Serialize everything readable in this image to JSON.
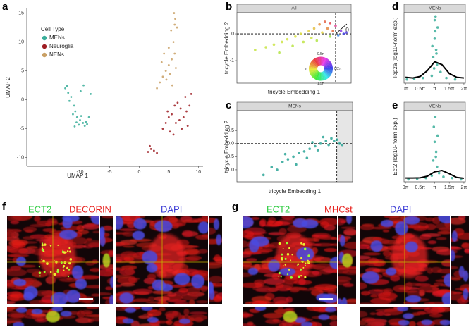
{
  "chart_data": [
    {
      "type": "scatter",
      "panel": "a",
      "xlabel": "UMAP 1",
      "ylabel": "UMAP 2",
      "xlim": [
        -19,
        10.8
      ],
      "ylim": [
        -11.5,
        15.8
      ],
      "xticks": [
        -10,
        -5,
        0,
        5,
        10
      ],
      "yticks": [
        -10,
        -5,
        0,
        5,
        10,
        15
      ],
      "legend_title": "Cell Type",
      "legend": "top-left",
      "series": [
        {
          "name": "MENs",
          "color": "#3aae9a",
          "x": [
            -12.5,
            -12,
            -11.5,
            -11,
            -10.8,
            -10.5,
            -10,
            -9.5,
            -9,
            -8.5,
            -11.8,
            -11.2,
            -10.2,
            -9.8,
            -9.2,
            -8.8,
            -8.2,
            -12.2,
            -10.6,
            -9.4,
            -10.9,
            -9.9
          ],
          "values": [
            2,
            1.2,
            0.5,
            -1,
            -2,
            -3,
            -3.5,
            -4,
            -3.8,
            -3,
            -0.2,
            -2.5,
            -4.3,
            -2.8,
            -4.5,
            -4.2,
            1,
            2.4,
            -3.9,
            2.5,
            -4.6,
            1.5
          ]
        },
        {
          "name": "Neuroglia",
          "color": "#9e1c22",
          "x": [
            4,
            4.5,
            5,
            5.5,
            6,
            6.5,
            7,
            7.5,
            8,
            8.5,
            5.2,
            6.2,
            7.2,
            4.8,
            6.8,
            8.2,
            1.5,
            2,
            2.5,
            1.8,
            3,
            7.8,
            8.8,
            5.8
          ],
          "values": [
            -5,
            -4,
            -3,
            -2.5,
            -1,
            -0.5,
            -1.5,
            -3,
            -2,
            -1,
            -5.5,
            -4,
            -5,
            -2,
            -3.5,
            -4.5,
            -9,
            -8.5,
            -8.8,
            -8,
            -9.2,
            0.5,
            1,
            -6
          ]
        },
        {
          "name": "NENs",
          "color": "#c9a065",
          "x": [
            3,
            3.5,
            4,
            4.5,
            5,
            5.5,
            6,
            5,
            5.8,
            4.6,
            5.2,
            6.2,
            5.6,
            5.4,
            6,
            6.1,
            5.9,
            3.8,
            4.2,
            6.4
          ],
          "values": [
            2,
            3,
            4,
            5,
            6,
            7,
            8,
            9,
            10,
            3.5,
            4.5,
            5.5,
            2.5,
            12,
            13,
            14,
            15,
            6.5,
            8,
            12.5
          ]
        }
      ]
    },
    {
      "type": "scatter",
      "panel": "b",
      "strip": "All",
      "xlabel": "tricycle Embedding 1",
      "ylabel": "tricycle Embedding 2",
      "xlim": [
        -3.68,
        0.58
      ],
      "ylim": [
        -1.84,
        0.79
      ],
      "yticks": [
        -1,
        0
      ],
      "vline": 0,
      "hline": 0,
      "color_by": "angle",
      "annotation": "θ",
      "wheel_labels": [
        "0.5π",
        "π",
        "1.5π",
        "0/2π"
      ],
      "series": [
        {
          "x": [
            -3,
            -2.6,
            -2.3,
            -2,
            -1.8,
            -1.5,
            -1.3,
            -1,
            -0.8,
            -0.6,
            -0.4,
            -0.2,
            0,
            0.2,
            0.3,
            -1.2,
            -0.9,
            -0.5,
            -0.3,
            -0.1,
            0.1,
            -1.6,
            -2.1,
            -0.7,
            -0.2,
            0.4
          ],
          "values": [
            -0.6,
            -0.5,
            -0.4,
            -0.3,
            -0.2,
            -0.1,
            0,
            0.1,
            0.2,
            0.35,
            0.45,
            0.4,
            0.3,
            0.1,
            0,
            -0.3,
            -0.15,
            0.05,
            0.2,
            0.1,
            -0.05,
            -0.45,
            -0.7,
            -0.25,
            -0.1,
            0.05
          ]
        }
      ]
    },
    {
      "type": "scatter",
      "panel": "c",
      "strip": "MENs",
      "xlabel": "tricycle Embedding 1",
      "ylabel": "tricycle Embedding 2",
      "xlim": [
        -3.68,
        0.58
      ],
      "ylim": [
        -1.46,
        1.26
      ],
      "yticks": [
        {
          "value": -1,
          "label": "-1.0"
        },
        -0.5,
        {
          "value": 0,
          "label": "0.0"
        },
        0.5
      ],
      "vline": 0,
      "hline": 0,
      "shade": "right",
      "series": [
        {
          "color": "#2aa596",
          "x": [
            -2.7,
            -2.4,
            -2.2,
            -2,
            -1.8,
            -1.6,
            -1.4,
            -1.2,
            -1,
            -0.8,
            -0.6,
            -0.4,
            -0.2,
            0,
            0.1,
            -1.5,
            -1.1,
            -0.7,
            -0.3,
            -0.5,
            -0.9,
            -1.9,
            -0.1,
            0.2
          ],
          "values": [
            -1.2,
            -0.9,
            -1,
            -0.7,
            -0.6,
            -0.5,
            -0.35,
            -0.3,
            -0.2,
            -0.1,
            0,
            0.1,
            0.2,
            0.15,
            0,
            -0.8,
            -0.55,
            -0.25,
            -0.05,
            0.25,
            0.05,
            -0.4,
            0.1,
            -0.05
          ]
        }
      ]
    },
    {
      "type": "line",
      "panel": "d",
      "strip": "MENs",
      "ylabel": "Top2a (log10-norm exp.)",
      "xlim": [
        -0.05,
        2.05
      ],
      "ylim": [
        -0.05,
        0.9
      ],
      "xticks": [
        {
          "value": 0,
          "label": "0π"
        },
        {
          "value": 0.5,
          "label": "0.5π"
        },
        {
          "value": 1,
          "label": "π"
        },
        {
          "value": 1.5,
          "label": "1.5π"
        },
        {
          "value": 2,
          "label": "2π"
        }
      ],
      "series": [
        {
          "mode": "points",
          "color": "#3aae9a",
          "x": [
            0.05,
            0.3,
            0.6,
            0.9,
            0.95,
            1,
            1,
            1.02,
            1.05,
            1.08,
            1.1,
            0.98,
            1.2,
            1.4,
            1.7,
            0.92,
            1.03,
            1.06
          ],
          "values": [
            0,
            0.01,
            0.02,
            0.05,
            0.3,
            0.55,
            0.8,
            0.65,
            0.4,
            0.2,
            0.7,
            0.15,
            0.1,
            0.02,
            0,
            0.45,
            0.85,
            0.35
          ]
        },
        {
          "mode": "line",
          "color": "#000000",
          "x": [
            0,
            0.25,
            0.5,
            0.75,
            1,
            1.25,
            1.5,
            1.75,
            2
          ],
          "values": [
            0.03,
            0.02,
            0.04,
            0.12,
            0.24,
            0.2,
            0.08,
            0.03,
            0.02
          ]
        }
      ]
    },
    {
      "type": "line",
      "panel": "e",
      "strip": "MENs",
      "ylabel": "Ect2 (log10-norm exp.)",
      "xlim": [
        -0.05,
        2.05
      ],
      "ylim": [
        -0.02,
        0.55
      ],
      "xticks": [
        {
          "value": 0,
          "label": "0π"
        },
        {
          "value": 0.5,
          "label": "0.5π"
        },
        {
          "value": 1,
          "label": "π"
        },
        {
          "value": 1.5,
          "label": "1.5π"
        },
        {
          "value": 2,
          "label": "2π"
        }
      ],
      "series": [
        {
          "mode": "points",
          "color": "#3aae9a",
          "x": [
            0.1,
            0.4,
            0.7,
            0.9,
            0.95,
            1,
            1.02,
            1.05,
            1.08,
            1.1,
            1.15,
            1.3,
            1.6,
            1.9,
            0.97,
            1.04
          ],
          "values": [
            0,
            0.005,
            0.01,
            0.03,
            0.15,
            0.3,
            0.5,
            0.22,
            0.1,
            0.35,
            0.05,
            0.02,
            0.01,
            0,
            0.42,
            0.18
          ]
        },
        {
          "mode": "line",
          "color": "#000000",
          "x": [
            0,
            0.25,
            0.5,
            0.75,
            1,
            1.25,
            1.5,
            1.75,
            2
          ],
          "values": [
            0.01,
            0.01,
            0.012,
            0.025,
            0.06,
            0.07,
            0.045,
            0.015,
            0.008
          ]
        }
      ]
    }
  ],
  "micrographs": [
    {
      "panel": "f",
      "channels": [
        {
          "label": "ECT2",
          "color": "#2ecc40"
        },
        {
          "label": "DECORIN",
          "color": "#e8231f"
        },
        {
          "label": "DAPI",
          "color": "#3d3dd6"
        }
      ]
    },
    {
      "panel": "g",
      "channels": [
        {
          "label": "ECT2",
          "color": "#2ecc40"
        },
        {
          "label": "MHCst",
          "color": "#e8231f"
        },
        {
          "label": "DAPI",
          "color": "#3d3dd6"
        }
      ]
    }
  ]
}
